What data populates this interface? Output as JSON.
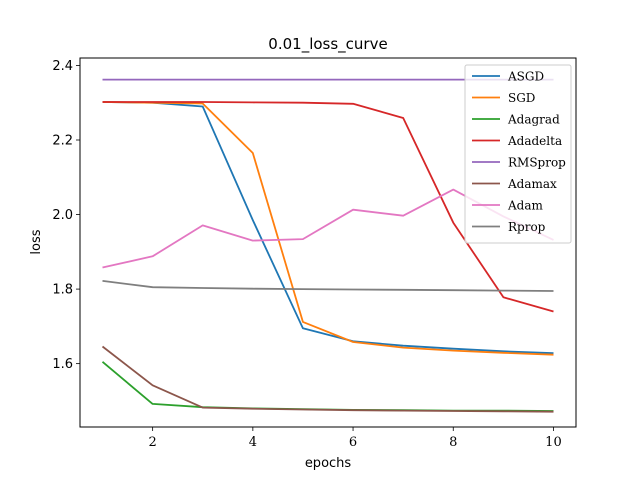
{
  "chart_data": {
    "type": "line",
    "title": "0.01_loss_curve",
    "xlabel": "epochs",
    "ylabel": "loss",
    "xlim": [
      0.55,
      10.45
    ],
    "ylim": [
      1.43,
      2.42
    ],
    "xticks": [
      2,
      4,
      6,
      8,
      10
    ],
    "yticks": [
      1.6,
      1.8,
      2.0,
      2.2,
      2.4
    ],
    "ytick_labels": [
      "1.6",
      "1.8",
      "2.0",
      "2.2",
      "2.4"
    ],
    "grid": false,
    "legend_position": "top-right",
    "x": [
      1,
      2,
      3,
      4,
      5,
      6,
      7,
      8,
      9,
      10
    ],
    "series": [
      {
        "name": "ASGD",
        "color": "#1f77b4",
        "values": [
          2.302,
          2.3,
          2.29,
          1.985,
          1.695,
          1.66,
          1.648,
          1.64,
          1.633,
          1.628
        ]
      },
      {
        "name": "SGD",
        "color": "#ff7f0e",
        "values": [
          2.302,
          2.3,
          2.298,
          2.165,
          1.712,
          1.658,
          1.643,
          1.635,
          1.629,
          1.624
        ]
      },
      {
        "name": "Adagrad",
        "color": "#2ca02c",
        "values": [
          1.605,
          1.492,
          1.483,
          1.48,
          1.478,
          1.476,
          1.475,
          1.474,
          1.474,
          1.473
        ]
      },
      {
        "name": "Adadelta",
        "color": "#d62728",
        "values": [
          2.302,
          2.302,
          2.302,
          2.301,
          2.3,
          2.297,
          2.259,
          1.978,
          1.778,
          1.74
        ]
      },
      {
        "name": "RMSprop",
        "color": "#9467bd",
        "values": [
          2.362,
          2.362,
          2.362,
          2.362,
          2.362,
          2.362,
          2.362,
          2.362,
          2.362,
          2.362
        ]
      },
      {
        "name": "Adamax",
        "color": "#8c564b",
        "values": [
          1.646,
          1.542,
          1.482,
          1.479,
          1.477,
          1.475,
          1.474,
          1.473,
          1.472,
          1.471
        ]
      },
      {
        "name": "Adam",
        "color": "#e377c2",
        "values": [
          1.858,
          1.888,
          1.971,
          1.93,
          1.934,
          2.013,
          1.997,
          2.067,
          1.995,
          1.932
        ]
      },
      {
        "name": "Rprop",
        "color": "#7f7f7f",
        "values": [
          1.822,
          1.805,
          1.803,
          1.801,
          1.8,
          1.799,
          1.798,
          1.797,
          1.796,
          1.795
        ]
      }
    ]
  }
}
